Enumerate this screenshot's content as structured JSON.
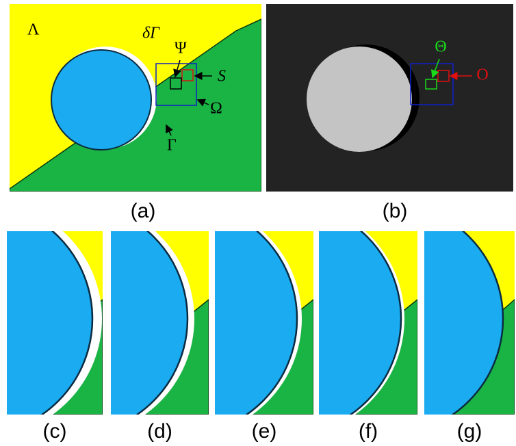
{
  "panel_a": {
    "symbols": {
      "lambda": "Λ",
      "delta_gamma": "δΓ",
      "psi": "Ψ",
      "s": "S",
      "omega": "Ω",
      "gamma": "Γ"
    },
    "label": "(a)"
  },
  "panel_b": {
    "symbols": {
      "theta": "Θ",
      "o": "O"
    },
    "label": "(b)"
  },
  "bottom_labels": [
    "(c)",
    "(d)",
    "(e)",
    "(f)",
    "(g)"
  ]
}
